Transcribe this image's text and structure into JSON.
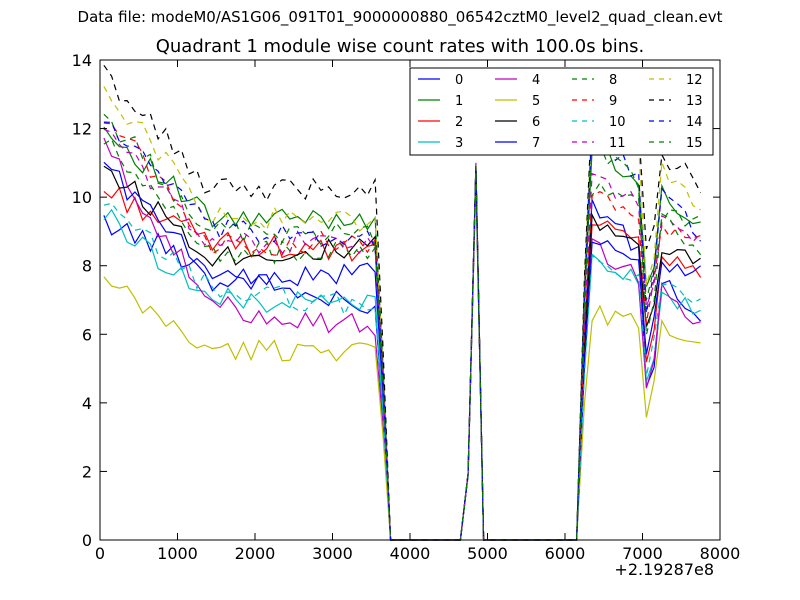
{
  "header": {
    "data_file": "Data file: modeM0/AS1G06_091T01_9000000880_06542cztM0_level2_quad_clean.evt"
  },
  "chart_data": {
    "type": "line",
    "title": "Quadrant 1 module wise count rates with 100.0s bins.",
    "xlabel": "",
    "ylabel": "",
    "x_offset_label": "+2.19287e8",
    "xlim": [
      0,
      8000
    ],
    "ylim": [
      0,
      14
    ],
    "x_ticks": [
      0,
      1000,
      2000,
      3000,
      4000,
      5000,
      6000,
      7000,
      8000
    ],
    "y_ticks": [
      0,
      2,
      4,
      6,
      8,
      10,
      12,
      14
    ],
    "grid": false,
    "legend_position": "top-right",
    "legend_columns": 4,
    "segments": [
      {
        "start": 50,
        "step": 100,
        "count": 36
      },
      {
        "start": 3650,
        "step": 100,
        "count": 1
      },
      {
        "start": 3750,
        "step": 100,
        "count": 9,
        "value": 0
      },
      {
        "start": 4650,
        "step": 100,
        "count": 4,
        "role": "spike"
      },
      {
        "start": 5050,
        "step": 100,
        "count": 11,
        "value": 0
      },
      {
        "start": 6150,
        "step": 100,
        "count": 17
      }
    ],
    "series": [
      {
        "name": "0",
        "color": "#0000ff",
        "style": "solid",
        "base": 9.3,
        "mid": 7.9,
        "end": 6.6,
        "rise": 9.9,
        "late": 6.4,
        "spike": 10.8
      },
      {
        "name": "1",
        "color": "#008000",
        "style": "solid",
        "base": 12.0,
        "mid": 9.3,
        "end": 9.4,
        "rise": 11.5,
        "late": 9.3,
        "spike": 10.9
      },
      {
        "name": "2",
        "color": "#ff0000",
        "style": "solid",
        "base": 10.2,
        "mid": 8.7,
        "end": 8.3,
        "rise": 9.3,
        "late": 7.6,
        "spike": 10.8
      },
      {
        "name": "3",
        "color": "#00bfbf",
        "style": "solid",
        "base": 9.5,
        "mid": 7.0,
        "end": 6.9,
        "rise": 8.3,
        "late": 6.6,
        "spike": 10.7
      },
      {
        "name": "4",
        "color": "#bf00bf",
        "style": "solid",
        "base": 11.5,
        "mid": 6.8,
        "end": 6.2,
        "rise": 8.6,
        "late": 6.4,
        "spike": 11.0
      },
      {
        "name": "5",
        "color": "#bfbf00",
        "style": "solid",
        "base": 7.5,
        "mid": 5.5,
        "end": 5.6,
        "rise": 6.6,
        "late": 5.9,
        "spike": 10.5
      },
      {
        "name": "6",
        "color": "#000000",
        "style": "solid",
        "base": 10.9,
        "mid": 8.3,
        "end": 8.5,
        "rise": 9.4,
        "late": 8.2,
        "spike": 10.9
      },
      {
        "name": "7",
        "color": "#0000ff",
        "style": "solid",
        "base": 11.0,
        "mid": 7.6,
        "end": 7.8,
        "rise": 8.6,
        "late": 7.8,
        "spike": 10.6
      },
      {
        "name": "8",
        "color": "#008000",
        "style": "dashed",
        "base": 12.4,
        "mid": 9.0,
        "end": 8.9,
        "rise": 10.2,
        "late": 9.2,
        "spike": 10.9
      },
      {
        "name": "9",
        "color": "#ff0000",
        "style": "dashed",
        "base": 12.5,
        "mid": 8.6,
        "end": 8.7,
        "rise": 10.1,
        "late": 8.6,
        "spike": 10.8
      },
      {
        "name": "10",
        "color": "#00bfbf",
        "style": "dashed",
        "base": 9.7,
        "mid": 7.3,
        "end": 6.8,
        "rise": 8.0,
        "late": 7.0,
        "spike": 10.7
      },
      {
        "name": "11",
        "color": "#bf00bf",
        "style": "dashed",
        "base": 11.9,
        "mid": 8.7,
        "end": 8.6,
        "rise": 10.6,
        "late": 8.8,
        "spike": 10.8
      },
      {
        "name": "12",
        "color": "#bfbf00",
        "style": "dashed",
        "base": 13.3,
        "mid": 9.4,
        "end": 9.3,
        "rise": 12.6,
        "late": 9.7,
        "spike": 10.6
      },
      {
        "name": "13",
        "color": "#000000",
        "style": "dashed",
        "base": 13.6,
        "mid": 10.2,
        "end": 10.3,
        "rise": 12.7,
        "late": 10.4,
        "spike": 10.9
      },
      {
        "name": "14",
        "color": "#0000ff",
        "style": "dashed",
        "base": 12.3,
        "mid": 9.0,
        "end": 8.8,
        "rise": 11.9,
        "late": 9.0,
        "spike": 10.8
      },
      {
        "name": "15",
        "color": "#008000",
        "style": "dashed",
        "base": 11.6,
        "mid": 8.4,
        "end": 8.4,
        "rise": 11.7,
        "late": 8.3,
        "spike": 10.9
      }
    ]
  }
}
